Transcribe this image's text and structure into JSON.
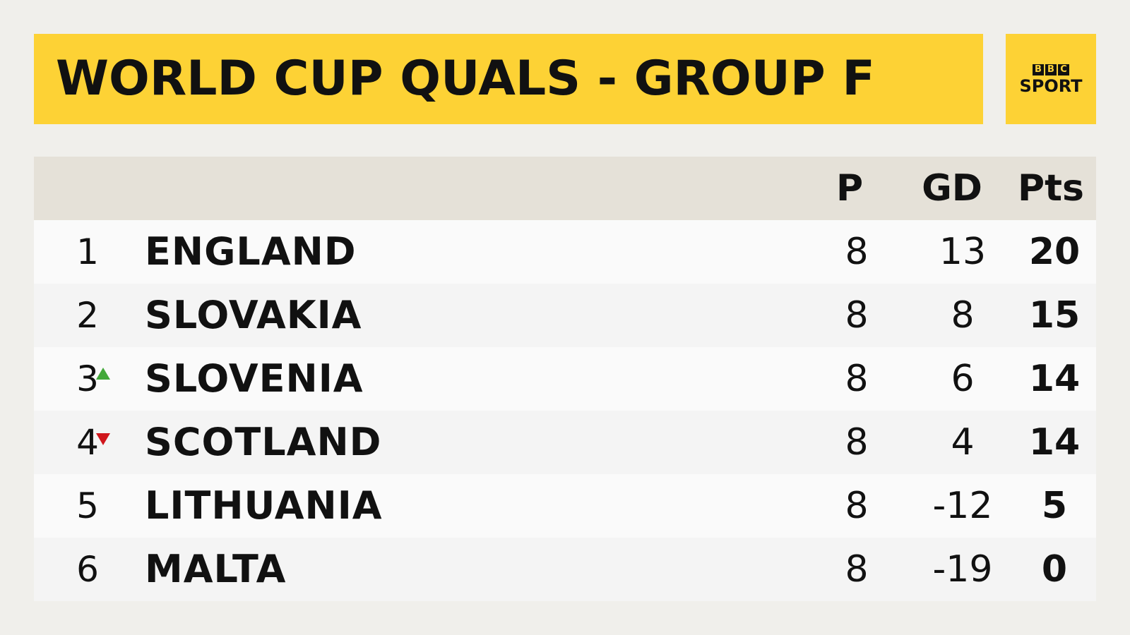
{
  "title": "WORLD CUP QUALS - GROUP F",
  "logo": {
    "bbc_letters": [
      "B",
      "B",
      "C"
    ],
    "sport": "SPORT",
    "brand_color": "#fdd235"
  },
  "table": {
    "headers": {
      "played": "P",
      "goal_difference": "GD",
      "points": "Pts"
    },
    "rows": [
      {
        "position": "1",
        "team": "ENGLAND",
        "played": "8",
        "gd": "13",
        "pts": "20",
        "movement": "none"
      },
      {
        "position": "2",
        "team": "SLOVAKIA",
        "played": "8",
        "gd": "8",
        "pts": "15",
        "movement": "none"
      },
      {
        "position": "3",
        "team": "SLOVENIA",
        "played": "8",
        "gd": "6",
        "pts": "14",
        "movement": "up"
      },
      {
        "position": "4",
        "team": "SCOTLAND",
        "played": "8",
        "gd": "4",
        "pts": "14",
        "movement": "down"
      },
      {
        "position": "5",
        "team": "LITHUANIA",
        "played": "8",
        "gd": "-12",
        "pts": "5",
        "movement": "none"
      },
      {
        "position": "6",
        "team": "MALTA",
        "played": "8",
        "gd": "-19",
        "pts": "0",
        "movement": "none"
      }
    ]
  },
  "colors": {
    "movement_up": "#43a83a",
    "movement_down": "#d0161c"
  },
  "icons": {
    "up": "triangle-up-icon",
    "down": "triangle-down-icon"
  }
}
